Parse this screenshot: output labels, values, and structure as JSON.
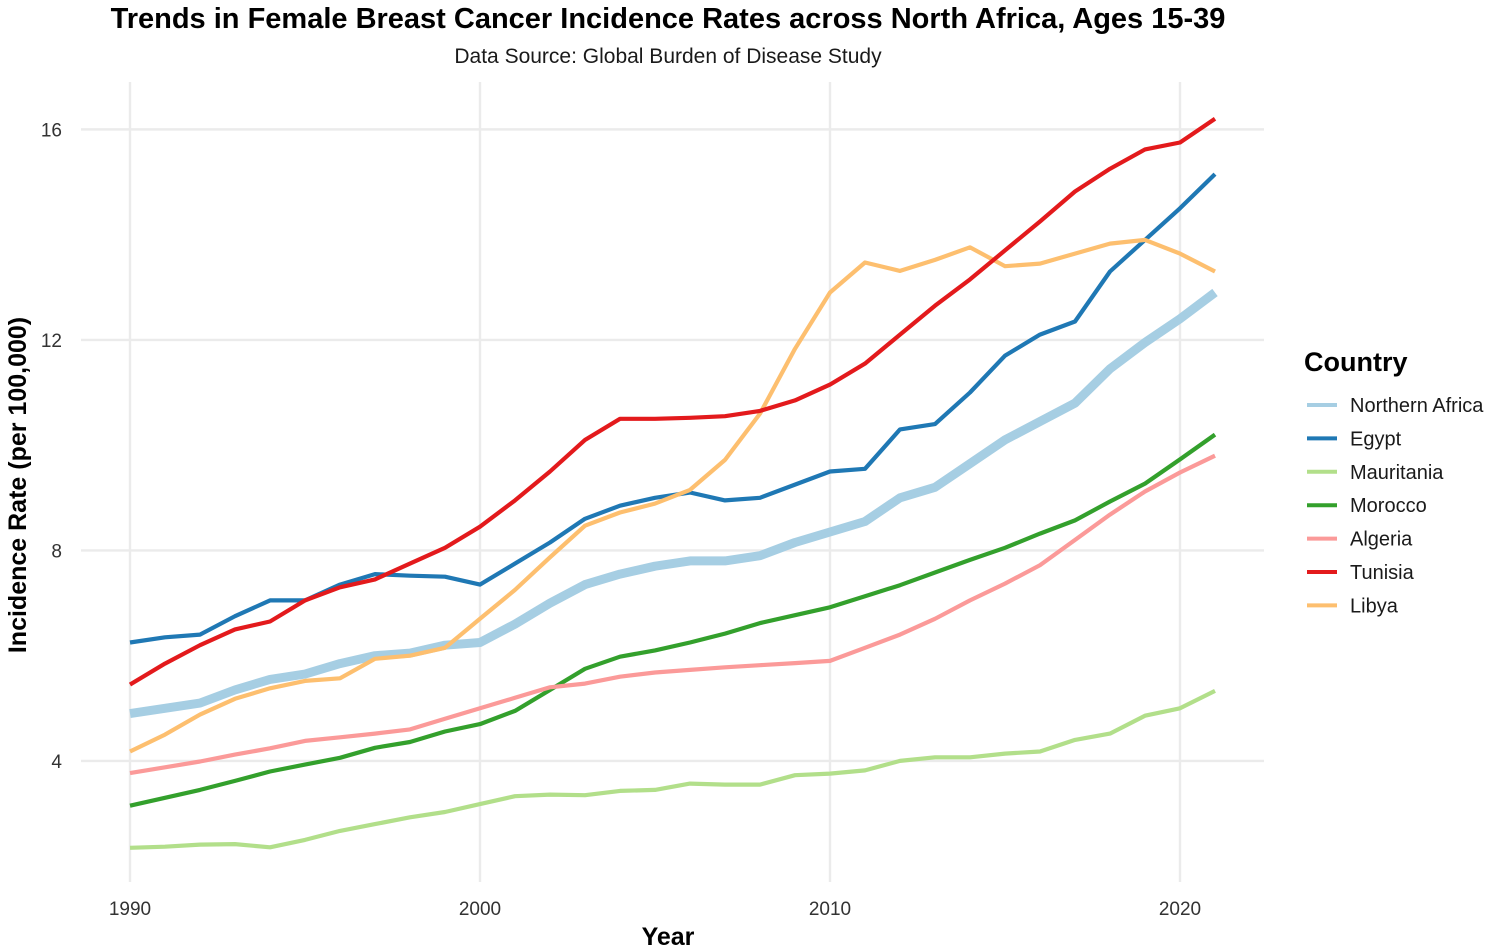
{
  "chart_data": {
    "type": "line",
    "title": "Trends in Female Breast Cancer Incidence Rates across North Africa, Ages 15-39",
    "subtitle": "Data Source: Global Burden of Disease Study",
    "xlabel": "Year",
    "ylabel": "Incidence Rate (per 100,000)",
    "xlim": [
      1990,
      2021
    ],
    "ylim": [
      1.7,
      16.9
    ],
    "x_ticks": [
      1990,
      2000,
      2010,
      2020
    ],
    "y_ticks": [
      4,
      8,
      12,
      16
    ],
    "grid": true,
    "legend": {
      "title": "Country",
      "position": "right"
    },
    "x": [
      1990,
      1991,
      1992,
      1993,
      1994,
      1995,
      1996,
      1997,
      1998,
      1999,
      2000,
      2001,
      2002,
      2003,
      2004,
      2005,
      2006,
      2007,
      2008,
      2009,
      2010,
      2011,
      2012,
      2013,
      2014,
      2015,
      2016,
      2017,
      2018,
      2019,
      2020,
      2021
    ],
    "series": [
      {
        "name": "Northern Africa",
        "color": "#a6cee3",
        "values": [
          4.9,
          5.0,
          5.1,
          5.35,
          5.55,
          5.65,
          5.85,
          6.0,
          6.05,
          6.2,
          6.25,
          6.6,
          7.0,
          7.35,
          7.55,
          7.7,
          7.8,
          7.8,
          7.9,
          8.15,
          8.35,
          8.55,
          9.0,
          9.2,
          9.65,
          10.1,
          10.45,
          10.8,
          11.45,
          11.95,
          12.4,
          12.9
        ]
      },
      {
        "name": "Egypt",
        "color": "#1f78b4",
        "values": [
          6.25,
          6.35,
          6.4,
          6.75,
          7.05,
          7.05,
          7.35,
          7.55,
          7.52,
          7.5,
          7.35,
          7.75,
          8.15,
          8.6,
          8.85,
          9.0,
          9.1,
          8.95,
          9.0,
          9.25,
          9.5,
          9.55,
          10.3,
          10.4,
          11.0,
          11.7,
          12.1,
          12.35,
          13.3,
          13.9,
          14.5,
          15.15
        ]
      },
      {
        "name": "Mauritania",
        "color": "#b2df8a",
        "values": [
          2.35,
          2.37,
          2.41,
          2.42,
          2.36,
          2.5,
          2.67,
          2.8,
          2.93,
          3.03,
          3.18,
          3.33,
          3.36,
          3.35,
          3.43,
          3.45,
          3.57,
          3.55,
          3.55,
          3.73,
          3.76,
          3.82,
          4.0,
          4.07,
          4.07,
          4.14,
          4.18,
          4.4,
          4.52,
          4.86,
          5.0,
          5.33
        ]
      },
      {
        "name": "Morocco",
        "color": "#33a02c",
        "values": [
          3.15,
          3.3,
          3.45,
          3.62,
          3.8,
          3.93,
          4.06,
          4.25,
          4.36,
          4.56,
          4.7,
          4.95,
          5.35,
          5.75,
          5.98,
          6.1,
          6.25,
          6.42,
          6.62,
          6.77,
          6.92,
          7.13,
          7.34,
          7.58,
          7.82,
          8.05,
          8.32,
          8.57,
          8.93,
          9.27,
          9.73,
          10.2
        ]
      },
      {
        "name": "Algeria",
        "color": "#fb9a99",
        "values": [
          3.77,
          3.88,
          3.99,
          4.12,
          4.24,
          4.38,
          4.45,
          4.52,
          4.6,
          4.8,
          5.0,
          5.2,
          5.4,
          5.47,
          5.6,
          5.68,
          5.73,
          5.78,
          5.82,
          5.86,
          5.9,
          6.15,
          6.4,
          6.7,
          7.05,
          7.37,
          7.72,
          8.2,
          8.68,
          9.12,
          9.48,
          9.8
        ]
      },
      {
        "name": "Tunisia",
        "color": "#e31a1c",
        "values": [
          5.45,
          5.85,
          6.2,
          6.5,
          6.65,
          7.05,
          7.3,
          7.45,
          7.75,
          8.05,
          8.45,
          8.95,
          9.5,
          10.1,
          10.5,
          10.5,
          10.52,
          10.55,
          10.65,
          10.85,
          11.15,
          11.55,
          12.1,
          12.65,
          13.15,
          13.7,
          14.25,
          14.82,
          15.25,
          15.62,
          15.75,
          16.2
        ]
      },
      {
        "name": "Libya",
        "color": "#fdbf6f",
        "values": [
          4.18,
          4.5,
          4.88,
          5.18,
          5.38,
          5.52,
          5.57,
          5.94,
          6.0,
          6.15,
          6.7,
          7.25,
          7.87,
          8.47,
          8.72,
          8.89,
          9.15,
          9.72,
          10.6,
          11.83,
          12.9,
          13.47,
          13.31,
          13.52,
          13.76,
          13.4,
          13.45,
          13.64,
          13.83,
          13.9,
          13.64,
          13.3
        ]
      }
    ]
  }
}
